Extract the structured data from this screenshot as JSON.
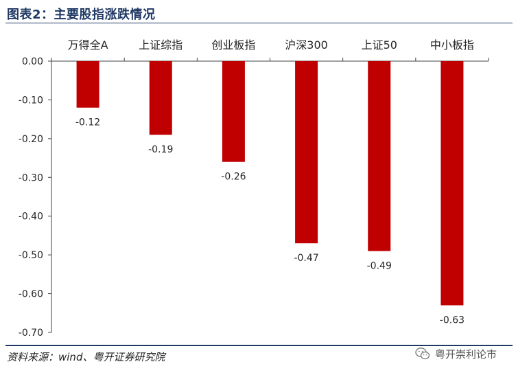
{
  "figure": {
    "title": "图表2：主要股指涨跌情况",
    "source": "资料来源：wind、粤开证券研究院",
    "watermark": "粤开崇利论市",
    "watermark_icon": "wechat-icon"
  },
  "chart_data": {
    "type": "bar",
    "categories": [
      "万得全A",
      "上证综指",
      "创业板指",
      "沪深300",
      "上证50",
      "中小板指"
    ],
    "values": [
      -0.12,
      -0.19,
      -0.26,
      -0.47,
      -0.49,
      -0.63
    ],
    "data_labels": [
      "-0.12",
      "-0.19",
      "-0.26",
      "-0.47",
      "-0.49",
      "-0.63"
    ],
    "ylim": [
      -0.7,
      0.0
    ],
    "yticks": [
      0.0,
      -0.1,
      -0.2,
      -0.3,
      -0.4,
      -0.5,
      -0.6,
      -0.7
    ],
    "ytick_labels": [
      "0.00",
      "-0.10",
      "-0.20",
      "-0.30",
      "-0.40",
      "-0.50",
      "-0.60",
      "-0.70"
    ],
    "category_axis_position": "top",
    "grid": false,
    "legend": "none",
    "bar_color": "#c00000",
    "title": "",
    "xlabel": "",
    "ylabel": ""
  }
}
